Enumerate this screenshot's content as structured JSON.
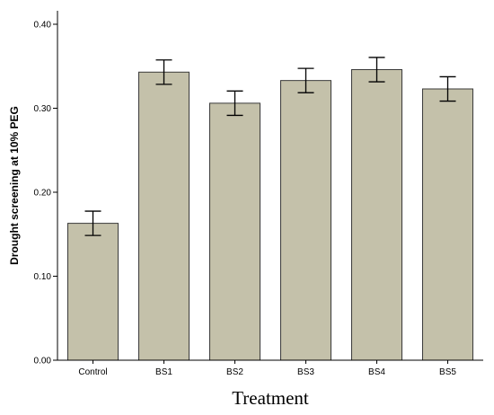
{
  "chart_data": {
    "type": "bar",
    "categories": [
      "Control",
      "BS1",
      "BS2",
      "BS3",
      "BS4",
      "BS5"
    ],
    "values": [
      0.163,
      0.343,
      0.306,
      0.333,
      0.346,
      0.323
    ],
    "error": [
      0.0145,
      0.0145,
      0.0145,
      0.0145,
      0.0145,
      0.0145
    ],
    "ylabel": "Drought screening at 10% PEG",
    "xlabel": "Treatment",
    "ylim": [
      0,
      0.4
    ],
    "yticks": [
      "0.00",
      "0.10",
      "0.20",
      "0.30",
      "0.40"
    ],
    "grid": false,
    "colors": {
      "bar_fill": "#c4c1aa",
      "bar_stroke": "#3a3a3a",
      "axis": "#000000"
    }
  }
}
